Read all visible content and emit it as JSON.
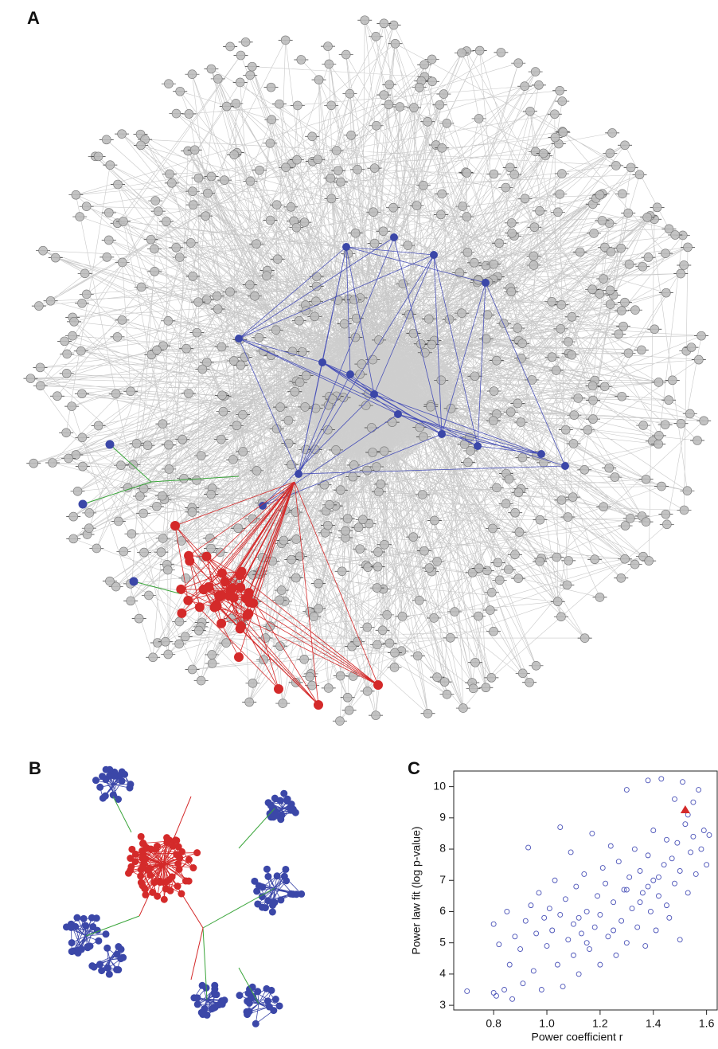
{
  "panels": {
    "a": {
      "label": "A"
    },
    "b": {
      "label": "B"
    }
  },
  "chart_data": {
    "type": "scatter",
    "panel_label": "C",
    "x_label": "Power coefficient r",
    "y_label": "Power law fit (log p-value)",
    "xlim": [
      0.65,
      1.64
    ],
    "ylim": [
      2.85,
      10.5
    ],
    "xticks": [
      0.8,
      {
        "value": 1,
        "label": "1.0"
      },
      1.2,
      1.4,
      1.6
    ],
    "yticks": [
      3,
      4,
      5,
      6,
      7,
      8,
      9,
      10
    ],
    "series": [
      {
        "color": "#4a52b8",
        "marker": "circle",
        "x": [
          0.7,
          0.8,
          0.81,
          0.8,
          0.82,
          0.84,
          0.85,
          0.86,
          0.87,
          0.88,
          0.9,
          0.91,
          0.92,
          0.93,
          0.94,
          0.95,
          0.96,
          0.97,
          0.98,
          0.99,
          1.0,
          1.01,
          1.02,
          1.03,
          1.04,
          1.05,
          1.05,
          1.06,
          1.07,
          1.08,
          1.09,
          1.1,
          1.1,
          1.11,
          1.12,
          1.13,
          1.14,
          1.15,
          1.16,
          1.17,
          1.18,
          1.19,
          1.2,
          1.2,
          1.21,
          1.22,
          1.23,
          1.24,
          1.25,
          1.26,
          1.27,
          1.28,
          1.29,
          1.3,
          1.3,
          1.31,
          1.32,
          1.33,
          1.34,
          1.35,
          1.36,
          1.37,
          1.38,
          1.38,
          1.39,
          1.4,
          1.4,
          1.41,
          1.42,
          1.43,
          1.44,
          1.45,
          1.45,
          1.46,
          1.47,
          1.48,
          1.48,
          1.49,
          1.5,
          1.5,
          1.51,
          1.52,
          1.53,
          1.53,
          1.54,
          1.55,
          1.55,
          1.56,
          1.57,
          1.58,
          1.59,
          1.6,
          1.61,
          1.35,
          1.25,
          1.15,
          1.3,
          1.42,
          1.12,
          1.38
        ],
        "values": [
          3.45,
          3.4,
          3.3,
          5.6,
          4.95,
          3.5,
          6.0,
          4.3,
          3.2,
          5.2,
          4.8,
          3.7,
          5.7,
          8.05,
          6.2,
          4.1,
          5.3,
          6.6,
          3.5,
          5.8,
          4.9,
          6.1,
          5.4,
          7.0,
          4.3,
          8.7,
          5.9,
          3.6,
          6.4,
          5.1,
          7.9,
          4.6,
          5.6,
          6.8,
          4.0,
          5.3,
          7.2,
          6.0,
          4.8,
          8.5,
          5.5,
          6.5,
          4.3,
          5.9,
          7.4,
          6.9,
          5.2,
          8.1,
          6.3,
          4.6,
          7.6,
          5.7,
          6.7,
          9.9,
          5.0,
          7.1,
          6.1,
          8.0,
          5.5,
          7.3,
          6.6,
          4.9,
          10.2,
          7.8,
          6.0,
          8.6,
          7.0,
          5.4,
          6.5,
          10.25,
          7.5,
          8.3,
          6.2,
          5.8,
          7.7,
          9.6,
          6.9,
          8.2,
          7.3,
          5.1,
          10.15,
          8.8,
          9.1,
          6.6,
          7.9,
          9.5,
          8.4,
          7.2,
          9.9,
          8.0,
          8.6,
          7.5,
          8.45,
          6.3,
          5.4,
          5.0,
          6.7,
          7.1,
          5.8,
          6.8
        ]
      },
      {
        "color": "#d42a2a",
        "marker": "triangle",
        "x": [
          1.52
        ],
        "values": [
          9.25
        ]
      }
    ]
  }
}
